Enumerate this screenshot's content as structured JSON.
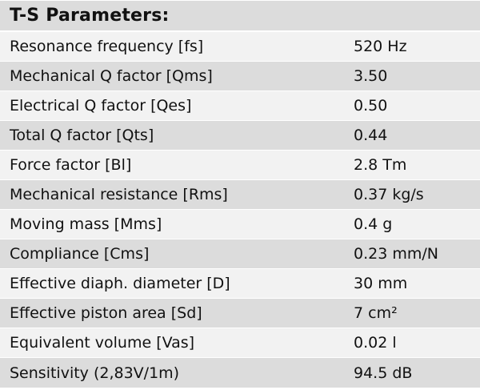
{
  "table": {
    "title": "T-S Parameters:",
    "rows": [
      {
        "label": "Resonance frequency [fs]",
        "value": "520 Hz"
      },
      {
        "label": "Mechanical Q factor [Qms]",
        "value": "3.50"
      },
      {
        "label": "Electrical Q factor [Qes]",
        "value": "0.50"
      },
      {
        "label": "Total Q factor [Qts]",
        "value": "0.44"
      },
      {
        "label": "Force factor [Bl]",
        "value": "2.8 Tm"
      },
      {
        "label": "Mechanical resistance [Rms]",
        "value": "0.37 kg/s"
      },
      {
        "label": "Moving mass [Mms]",
        "value": "0.4 g"
      },
      {
        "label": "Compliance [Cms]",
        "value": "0.23 mm/N"
      },
      {
        "label": "Effective diaph. diameter [D]",
        "value": "30 mm"
      },
      {
        "label": "Effective piston area [Sd]",
        "value": "7 cm²"
      },
      {
        "label": "Equivalent volume [Vas]",
        "value": "0.02 l"
      },
      {
        "label": "Sensitivity (2,83V/1m)",
        "value": "94.5 dB"
      }
    ]
  }
}
